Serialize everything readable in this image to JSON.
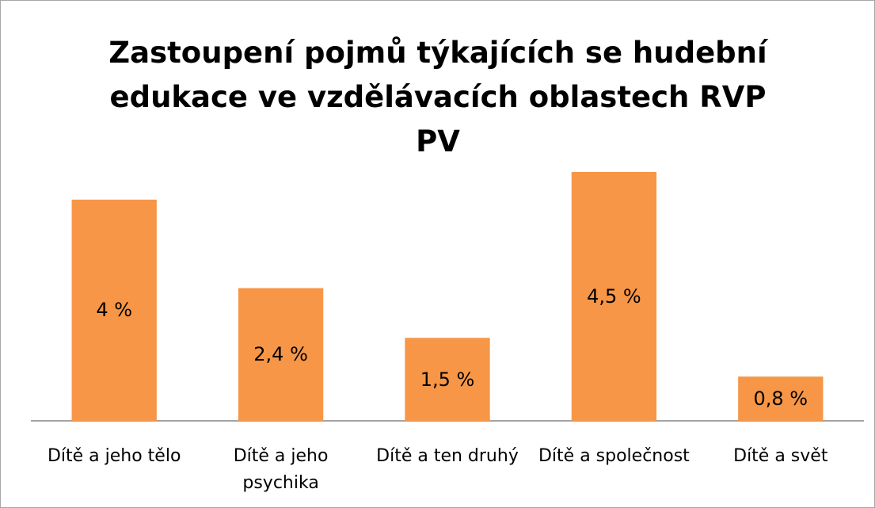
{
  "chart_data": {
    "type": "bar",
    "title": "Zastoupení pojmů týkajících se hudební edukace ve vzdělávacích oblastech RVP PV",
    "categories": [
      "Dítě a jeho tělo",
      "Dítě a jeho psychika",
      "Dítě a ten druhý",
      "Dítě a společnost",
      "Dítě a svět"
    ],
    "values": [
      4,
      2.4,
      1.5,
      4.5,
      0.8
    ],
    "value_labels": [
      "4 %",
      "2,4 %",
      "1,5 %",
      "4,5 %",
      "0,8 %"
    ],
    "color": "#f79646"
  }
}
